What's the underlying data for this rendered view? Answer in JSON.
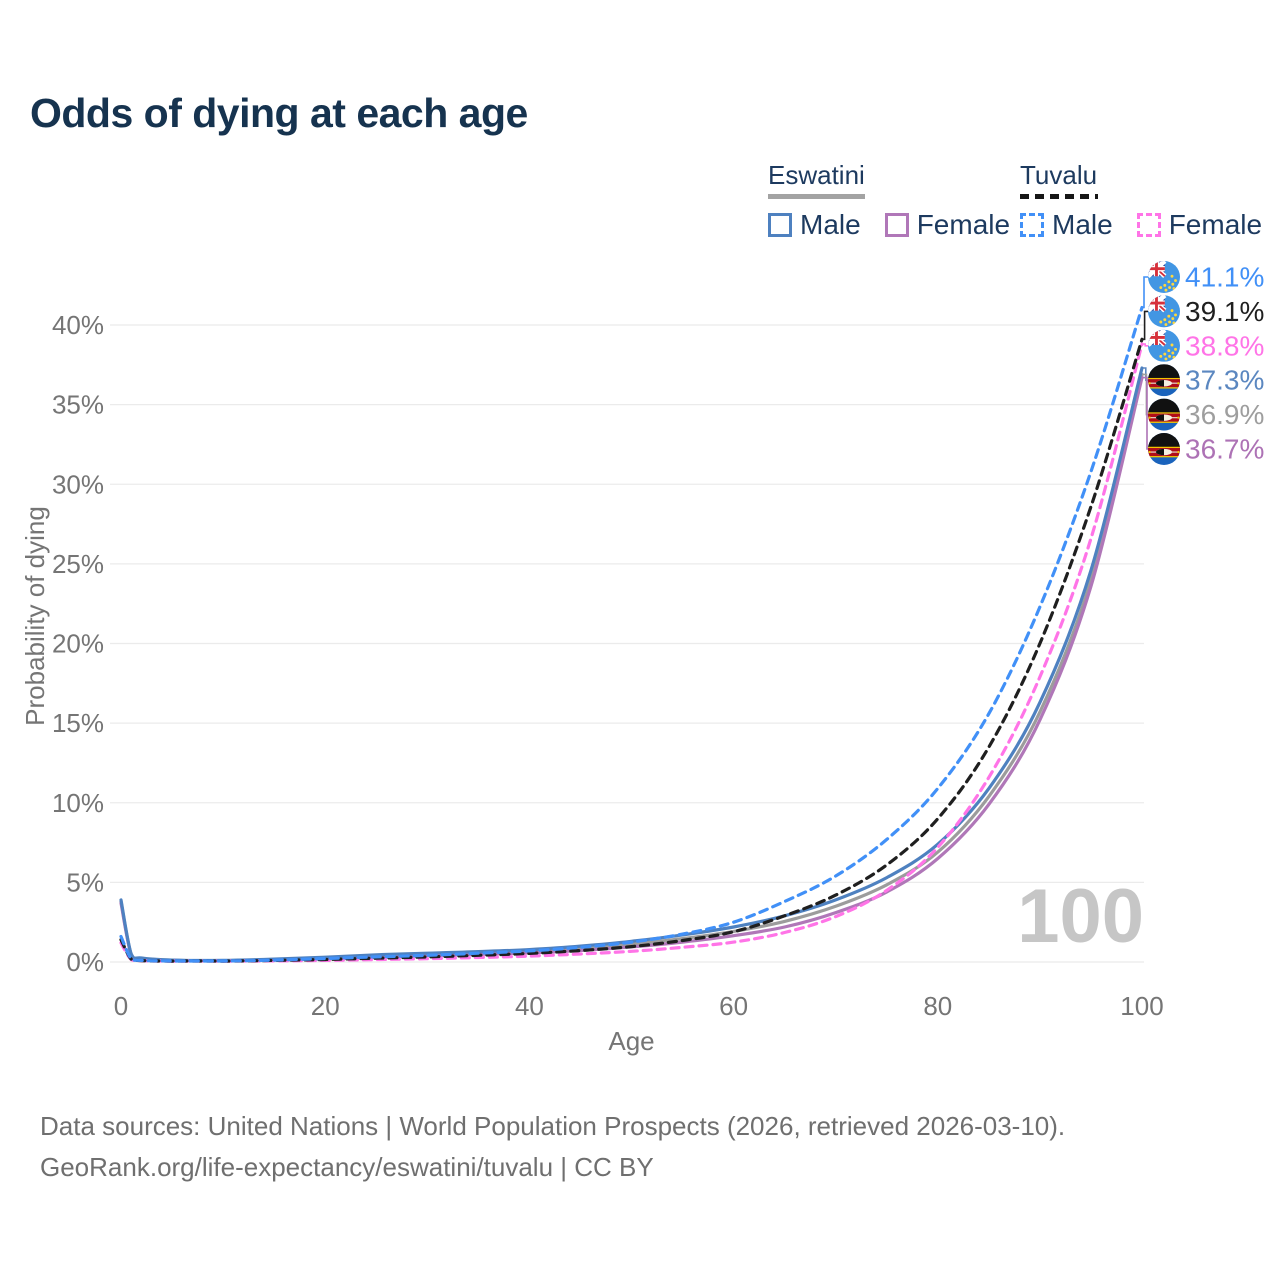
{
  "title": "Odds of dying at each age",
  "legend": {
    "groups": [
      {
        "label": "Eswatini",
        "line_style": "solid",
        "line_color": "#a3a3a3",
        "items": [
          {
            "label": "Male",
            "color": "#4e81c0",
            "style": "solid"
          },
          {
            "label": "Female",
            "color": "#b077b8",
            "style": "solid"
          }
        ]
      },
      {
        "label": "Tuvalu",
        "line_style": "dashed",
        "line_color": "#161616",
        "items": [
          {
            "label": "Male",
            "color": "#4190f7",
            "style": "dashed"
          },
          {
            "label": "Female",
            "color": "#ff74e7",
            "style": "dashed"
          }
        ]
      }
    ]
  },
  "chart_data": {
    "type": "line",
    "title": "Odds of dying at each age",
    "xlabel": "Age",
    "ylabel": "Probability of dying",
    "x_ticks": [
      "0",
      "20",
      "40",
      "60",
      "80",
      "100"
    ],
    "y_ticks": [
      "0%",
      "5%",
      "10%",
      "15%",
      "20%",
      "25%",
      "30%",
      "35%",
      "40%"
    ],
    "xlim": [
      0,
      100
    ],
    "ylim": [
      0,
      43.5
    ],
    "grid": true,
    "legend_position": "top-right",
    "watermark": "100",
    "ages": [
      0,
      1,
      2,
      5,
      10,
      15,
      20,
      25,
      30,
      35,
      40,
      45,
      50,
      55,
      60,
      65,
      70,
      75,
      80,
      85,
      90,
      95,
      100
    ],
    "series": [
      {
        "name": "Eswatini (both sexes)",
        "country": "Eswatini",
        "sex": "Both",
        "color": "#9c9c9c",
        "dash": "solid",
        "flag": "eswatini",
        "end_label": "36.9%",
        "values": [
          3.8,
          0.48,
          0.24,
          0.11,
          0.09,
          0.15,
          0.25,
          0.38,
          0.48,
          0.56,
          0.67,
          0.86,
          1.12,
          1.47,
          1.92,
          2.55,
          3.5,
          4.85,
          6.9,
          10.4,
          15.7,
          24.0,
          36.9
        ]
      },
      {
        "name": "Eswatini Female",
        "country": "Eswatini",
        "sex": "Female",
        "color": "#b077b8",
        "dash": "solid",
        "flag": "eswatini",
        "end_label": "36.7%",
        "values": [
          3.7,
          0.45,
          0.22,
          0.1,
          0.08,
          0.12,
          0.2,
          0.3,
          0.4,
          0.48,
          0.57,
          0.72,
          0.95,
          1.25,
          1.65,
          2.2,
          3.1,
          4.4,
          6.5,
          9.9,
          15.2,
          23.6,
          36.7
        ]
      },
      {
        "name": "Eswatini Male",
        "country": "Eswatini",
        "sex": "Male",
        "color": "#4e81c0",
        "dash": "solid",
        "flag": "eswatini",
        "end_label": "37.3%",
        "values": [
          3.9,
          0.5,
          0.25,
          0.12,
          0.1,
          0.18,
          0.3,
          0.45,
          0.55,
          0.65,
          0.78,
          1.0,
          1.3,
          1.7,
          2.2,
          2.9,
          3.9,
          5.3,
          7.4,
          10.9,
          16.3,
          24.6,
          37.3
        ]
      },
      {
        "name": "Tuvalu Female",
        "country": "Tuvalu",
        "sex": "Female",
        "color": "#ff74e7",
        "dash": "dashed",
        "flag": "tuvalu",
        "end_label": "38.8%",
        "values": [
          1.2,
          0.15,
          0.08,
          0.05,
          0.05,
          0.07,
          0.1,
          0.15,
          0.21,
          0.28,
          0.37,
          0.5,
          0.67,
          0.92,
          1.25,
          1.85,
          2.85,
          4.5,
          7.2,
          11.6,
          17.9,
          26.6,
          38.8
        ]
      },
      {
        "name": "Tuvalu (both sexes)",
        "country": "Tuvalu",
        "sex": "Both",
        "color": "#1f1f1f",
        "dash": "dashed",
        "flag": "tuvalu",
        "end_label": "39.1%",
        "values": [
          1.4,
          0.18,
          0.09,
          0.055,
          0.055,
          0.1,
          0.16,
          0.24,
          0.32,
          0.42,
          0.54,
          0.72,
          0.97,
          1.35,
          1.9,
          2.9,
          4.2,
          6.1,
          9.0,
          13.5,
          20.0,
          28.6,
          39.1
        ]
      },
      {
        "name": "Tuvalu Male",
        "country": "Tuvalu",
        "sex": "Male",
        "color": "#4190f7",
        "dash": "dashed",
        "flag": "tuvalu",
        "end_label": "41.1%",
        "values": [
          1.6,
          0.2,
          0.1,
          0.06,
          0.06,
          0.12,
          0.22,
          0.32,
          0.42,
          0.55,
          0.7,
          0.92,
          1.25,
          1.75,
          2.5,
          3.8,
          5.4,
          7.7,
          10.9,
          15.6,
          22.3,
          30.8,
          41.1
        ]
      }
    ],
    "end_labels": [
      {
        "text": "41.1%",
        "value": 41.1,
        "color": "#4190f7",
        "flag": "tuvalu"
      },
      {
        "text": "39.1%",
        "value": 39.1,
        "color": "#1f1f1f",
        "flag": "tuvalu"
      },
      {
        "text": "38.8%",
        "value": 38.8,
        "color": "#ff74e7",
        "flag": "tuvalu"
      },
      {
        "text": "37.3%",
        "value": 37.3,
        "color": "#5b87c0",
        "flag": "eswatini"
      },
      {
        "text": "36.9%",
        "value": 36.9,
        "color": "#9e9e9e",
        "flag": "eswatini"
      },
      {
        "text": "36.7%",
        "value": 36.7,
        "color": "#ad72b5",
        "flag": "eswatini"
      }
    ]
  },
  "footer": {
    "line1": "Data sources: United Nations | World Population Prospects (2026, retrieved 2026-03-10).",
    "line2": "GeoRank.org/life-expectancy/eswatini/tuvalu | CC BY"
  }
}
